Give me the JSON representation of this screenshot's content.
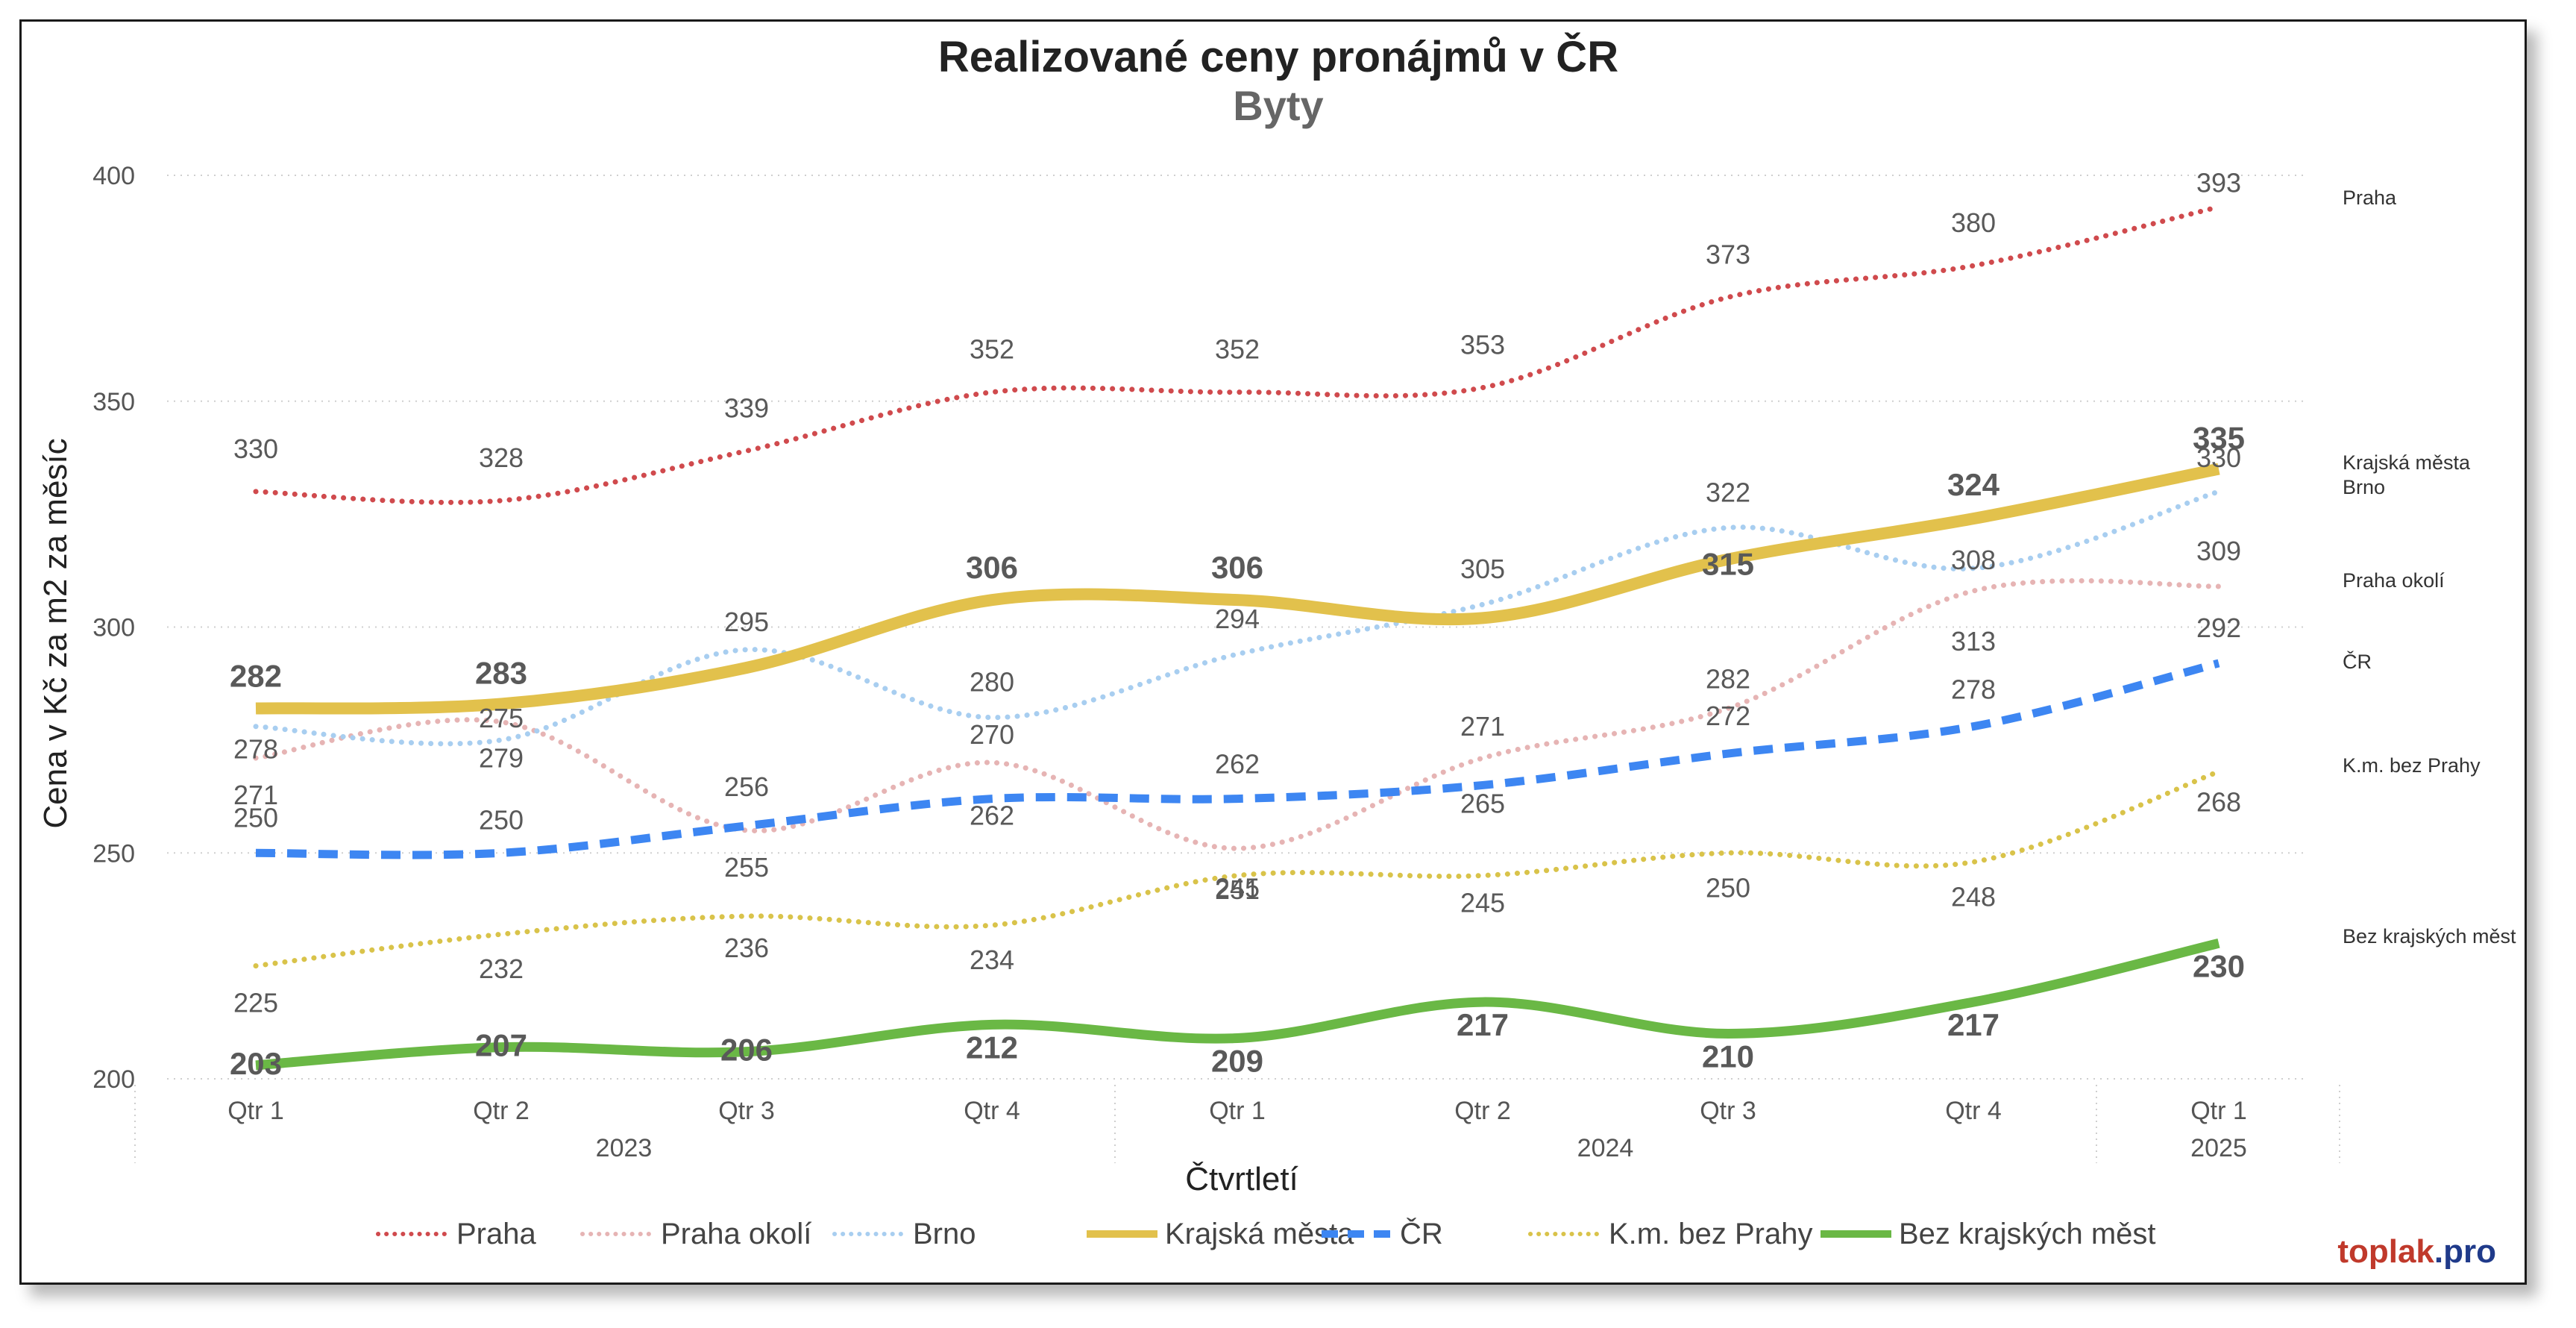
{
  "chart_data": {
    "type": "line",
    "title": "Realizované ceny pronájmů v ČR",
    "subtitle": "Byty",
    "xlabel": "Čtvrtletí",
    "ylabel": "Cena v Kč za m2 za měsíc",
    "ylim": [
      200,
      400
    ],
    "yticks": [
      "200",
      "250",
      "300",
      "350",
      "400"
    ],
    "grid": "horizontal dotted",
    "legend_position": "bottom",
    "categories": [
      "Qtr 1",
      "Qtr 2",
      "Qtr 3",
      "Qtr 4",
      "Qtr 1",
      "Qtr 2",
      "Qtr 3",
      "Qtr 4",
      "Qtr 1"
    ],
    "years": [
      {
        "label": "2023",
        "from": 0,
        "to": 3
      },
      {
        "label": "2024",
        "from": 4,
        "to": 7
      },
      {
        "label": "2025",
        "from": 8,
        "to": 8
      }
    ],
    "series": [
      {
        "name": "Praha",
        "color": "#d04a4d",
        "style": "dotted",
        "width": 7,
        "bold": false,
        "right_label": "Praha",
        "values": [
          330,
          328,
          339,
          352,
          352,
          353,
          373,
          380,
          393
        ]
      },
      {
        "name": "Praha okolí",
        "color": "#e6b4b4",
        "style": "dotted",
        "width": 7,
        "bold": false,
        "right_label": "Praha okolí",
        "values": [
          271,
          279,
          255,
          270,
          251,
          271,
          282,
          308,
          309
        ]
      },
      {
        "name": "Brno",
        "color": "#a8cef0",
        "style": "dotted",
        "width": 7,
        "bold": false,
        "right_label": "Brno",
        "values": [
          278,
          275,
          295,
          280,
          294,
          305,
          322,
          313,
          330
        ]
      },
      {
        "name": "Krajská města",
        "color": "#e2c14c",
        "style": "solid",
        "width": 16,
        "bold": true,
        "right_label": "Krajská města",
        "values": [
          282,
          283,
          291,
          306,
          306,
          302,
          315,
          324,
          335
        ]
      },
      {
        "name": "ČR",
        "color": "#3d86f2",
        "style": "dashed",
        "width": 11,
        "bold": false,
        "right_label": "ČR",
        "values": [
          250,
          250,
          256,
          262,
          262,
          265,
          272,
          278,
          292
        ]
      },
      {
        "name": "K.m. bez Prahy",
        "color": "#d9c34a",
        "style": "dotted",
        "width": 7,
        "bold": false,
        "right_label": "K.m. bez Prahy",
        "values": [
          225,
          232,
          236,
          234,
          245,
          245,
          250,
          248,
          268
        ]
      },
      {
        "name": "Bez krajských měst",
        "color": "#6ab845",
        "style": "solid",
        "width": 13,
        "bold": true,
        "right_label": "Bez krajských měst",
        "values": [
          203,
          207,
          206,
          212,
          209,
          217,
          210,
          217,
          230
        ]
      }
    ],
    "data_labels": [
      {
        "series": "Praha",
        "labels": [
          "330",
          "328",
          "339",
          "352",
          "352",
          "353",
          "373",
          "380",
          "393"
        ]
      },
      {
        "series": "Praha okolí",
        "labels": [
          "271",
          "279",
          "255",
          "270",
          "251",
          "271",
          "282",
          "308",
          "309"
        ]
      },
      {
        "series": "Brno",
        "labels": [
          "278",
          "275",
          "295",
          "280",
          "294",
          "305",
          "322",
          "313",
          "330"
        ]
      },
      {
        "series": "Krajská města",
        "labels": [
          "282",
          "283",
          "",
          "306",
          "306",
          "",
          "315",
          "324",
          "335"
        ]
      },
      {
        "series": "ČR",
        "labels": [
          "250",
          "250",
          "256",
          "262",
          "262",
          "265",
          "272",
          "278",
          "292"
        ]
      },
      {
        "series": "K.m. bez Prahy",
        "labels": [
          "225",
          "232",
          "236",
          "234",
          "245",
          "245",
          "250",
          "248",
          "268"
        ]
      },
      {
        "series": "Bez krajských měst",
        "labels": [
          "203",
          "207",
          "206",
          "212",
          "209",
          "217",
          "210",
          "217",
          "230"
        ]
      }
    ]
  },
  "branding": {
    "part1": "toplak",
    "part2": ".pro",
    "color1": "#c0392b",
    "color2": "#1f3a8a"
  }
}
